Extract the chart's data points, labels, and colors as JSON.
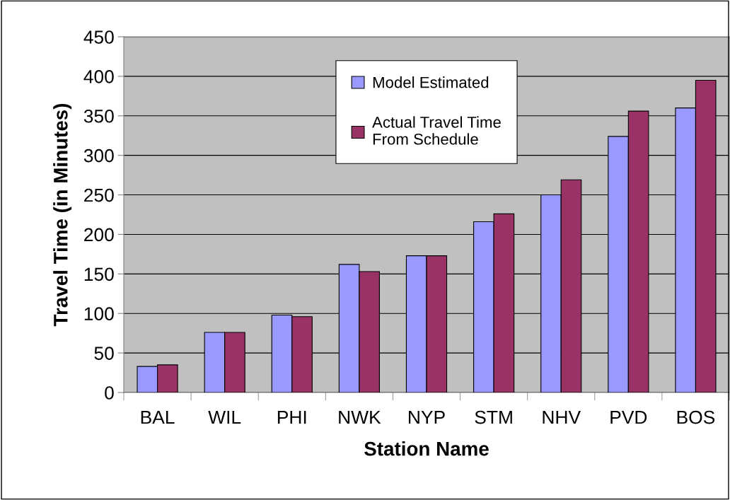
{
  "chart_data": {
    "type": "bar",
    "xlabel": "Station Name",
    "ylabel": "Travel Time (in Minutes)",
    "categories": [
      "BAL",
      "WIL",
      "PHI",
      "NWK",
      "NYP",
      "STM",
      "NHV",
      "PVD",
      "BOS"
    ],
    "series": [
      {
        "name": "Model Estimated",
        "color": "#9999ff",
        "values": [
          33,
          76,
          98,
          162,
          173,
          216,
          250,
          324,
          360
        ]
      },
      {
        "name": "Actual Travel Time\nFrom Schedule",
        "color": "#993366",
        "values": [
          35,
          76,
          96,
          153,
          173,
          226,
          269,
          356,
          395
        ]
      }
    ],
    "ylim": [
      0,
      450
    ],
    "yticks": [
      0,
      50,
      100,
      150,
      200,
      250,
      300,
      350,
      400,
      450
    ],
    "grid": "y",
    "legend": "top"
  }
}
